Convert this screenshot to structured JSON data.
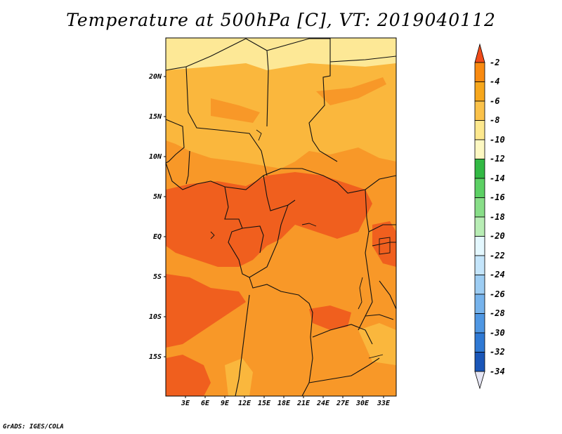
{
  "title": "Temperature at 500hPa [C], VT: 2019040112",
  "credit": "GrADS: IGES/COLA",
  "y_axis_labels": [
    "20N",
    "15N",
    "10N",
    "5N",
    "EQ",
    "5S",
    "10S",
    "15S"
  ],
  "x_axis_labels": [
    "3E",
    "6E",
    "9E",
    "12E",
    "15E",
    "18E",
    "21E",
    "24E",
    "27E",
    "30E",
    "33E"
  ],
  "colorbar": {
    "labels": [
      "-2",
      "-4",
      "-6",
      "-8",
      "-10",
      "-12",
      "-14",
      "-16",
      "-18",
      "-20",
      "-22",
      "-24",
      "-26",
      "-28",
      "-30",
      "-32",
      "-34"
    ],
    "colors": [
      "#f2551b",
      "#f98a10",
      "#f7a71c",
      "#fbc24a",
      "#fde88e",
      "#fdf8c2",
      "#32b944",
      "#5cd064",
      "#88de88",
      "#b8edb5",
      "#e4f8ff",
      "#c4e5fb",
      "#9dcdf3",
      "#76b3ec",
      "#4f97e3",
      "#2f79d4",
      "#1a56b8",
      "#0c2f8a",
      "#061166"
    ],
    "top_color": "#f04b1a",
    "bottom_color": "#e6e6f4"
  },
  "map_colors": {
    "warm": "#f05f1e",
    "mid": "#f89828",
    "cool": "#fab73d",
    "pale": "#fbd46e",
    "palest": "#fde896"
  }
}
